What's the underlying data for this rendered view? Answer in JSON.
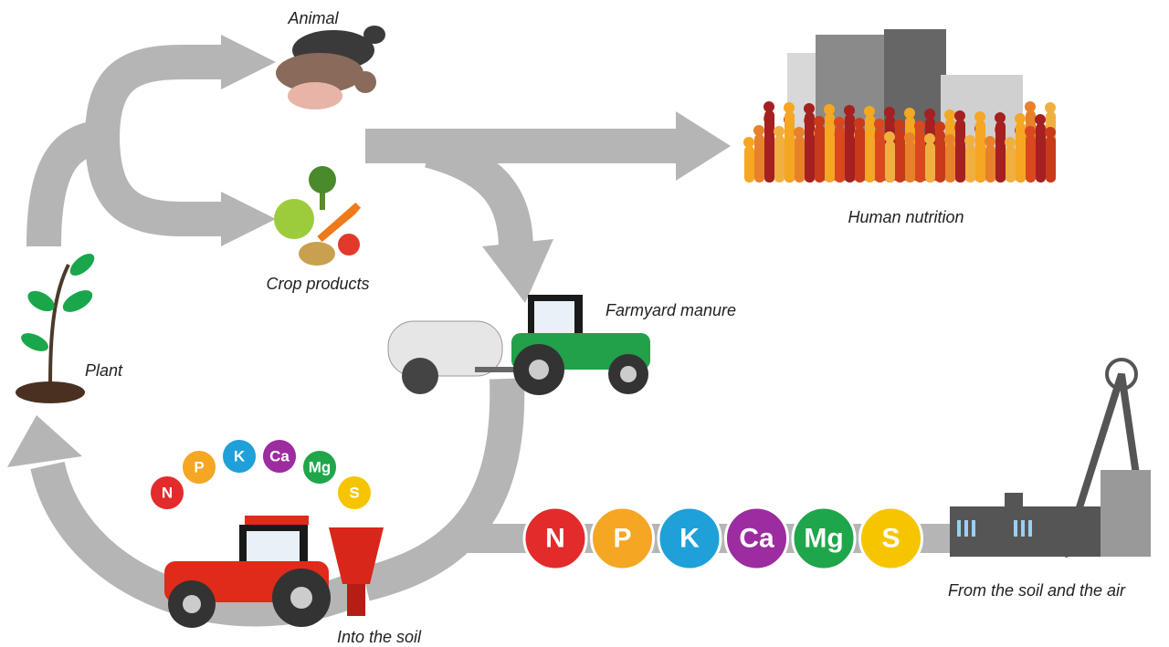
{
  "labels": {
    "animal": "Animal",
    "human_nutrition": "Human nutrition",
    "crop_products": "Crop products",
    "farmyard_manure": "Farmyard manure",
    "plant": "Plant",
    "into_the_soil": "Into the soil",
    "from_soil_and_air": "From the soil and the air"
  },
  "fertilizer_nutrients": [
    "N",
    "P",
    "K",
    "Ca",
    "Mg",
    "S"
  ],
  "mineral_nutrients": [
    "N",
    "P",
    "K",
    "Ca",
    "Mg",
    "S"
  ]
}
